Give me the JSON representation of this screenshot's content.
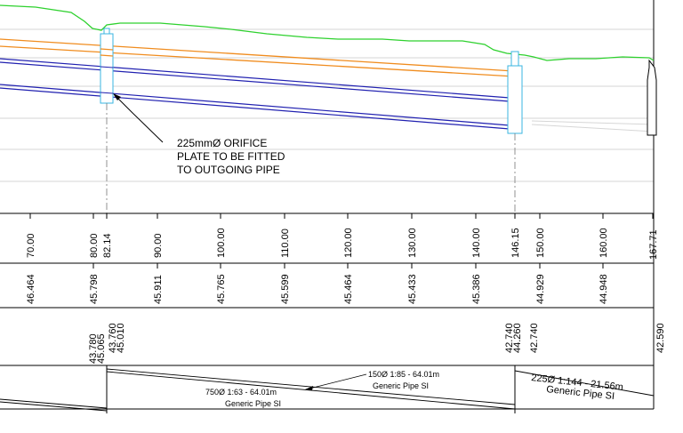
{
  "annotation": {
    "lines": [
      "225mmØ ORIFICE",
      "PLATE TO BE FITTED",
      "TO OUTGOING PIPE"
    ]
  },
  "chainage_labels": [
    "70.00",
    "80.00",
    "82.14",
    "90.00",
    "100.00",
    "110.00",
    "120.00",
    "130.00",
    "140.00",
    "146.15",
    "150.00",
    "160.00",
    "167.71"
  ],
  "ground_levels": [
    "46.464",
    "45.798",
    "45.911",
    "45.765",
    "45.599",
    "45.464",
    "45.433",
    "45.386",
    "44.929",
    "44.948"
  ],
  "invert_levels": {
    "mh1_in": "43.780",
    "mh1_cover": "45.065",
    "mh1_out": "43.760",
    "mh1_level": "45.010",
    "mh2_in": "42.740",
    "mh2_cover": "44.260",
    "mh2_out": "42.740",
    "end": "42.590"
  },
  "pipe_labels": {
    "upper_pipe": "150Ø 1:85 - 64.01m",
    "upper_pipe_type": "Generic Pipe SI",
    "lower_pipe": "750Ø 1:63 - 64.01m",
    "lower_pipe_type": "Generic Pipe SI",
    "last_pipe": "225Ø 1:144 - 21.56m",
    "last_pipe_type": "Generic Pipe SI"
  },
  "colors": {
    "ground": "#2ed12e",
    "orange_pipe": "#f08c1e",
    "blue_pipe": "#2020b0",
    "manhole": "#39b5e0",
    "grid": "#d0d0d0"
  }
}
